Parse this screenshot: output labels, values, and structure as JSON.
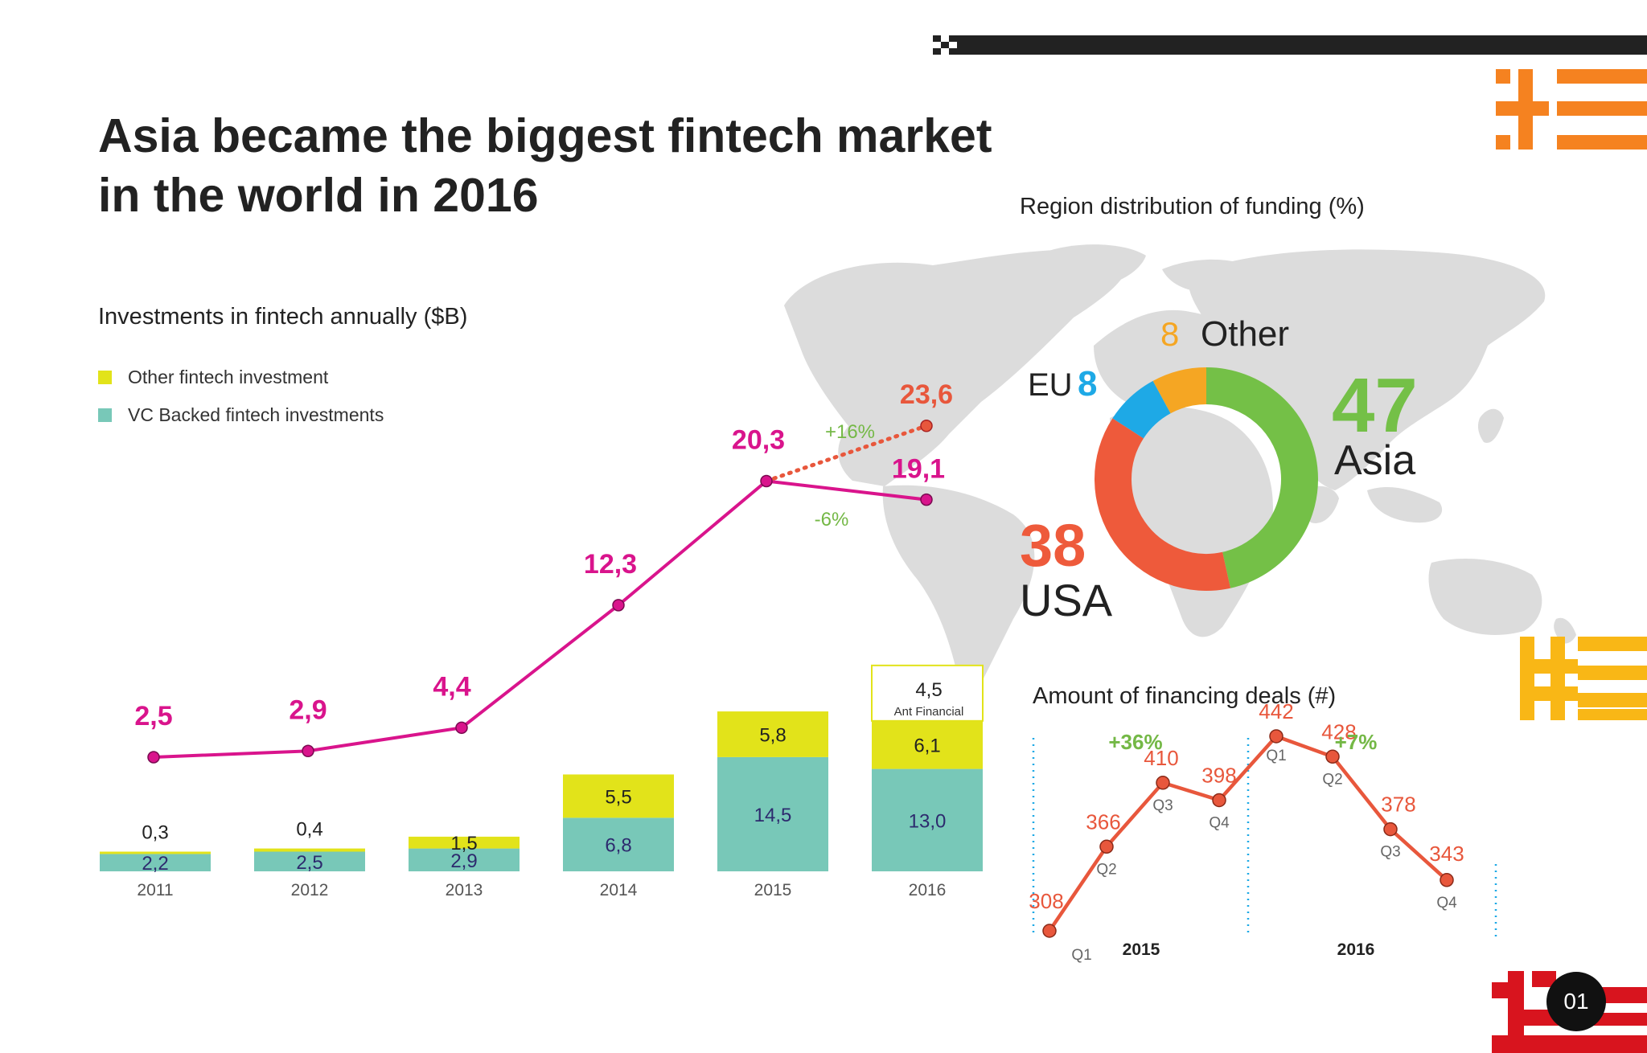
{
  "page": {
    "title_line1": "Asia became the biggest fintech market",
    "title_line2": "in the world in 2016",
    "page_number": "01"
  },
  "colors": {
    "vc": "#78c8b8",
    "other": "#e2e31a",
    "total_line": "#d9148c",
    "projection": "#e8573c",
    "positive": "#74b846",
    "deals_line": "#e8573c",
    "asia": "#74c047",
    "usa": "#ee5a3b",
    "eu": "#1ea9e6",
    "other_region": "#f5a623",
    "map": "#dcdcdc",
    "dark": "#222222",
    "orange_deco": "#f58220",
    "yellow_deco": "#f9b716",
    "red_deco": "#d8141e"
  },
  "chart_data": [
    {
      "type": "bar",
      "title": "Investments in fintech annually ($B)",
      "stacked": true,
      "categories": [
        "2011",
        "2012",
        "2013",
        "2014",
        "2015",
        "2016"
      ],
      "series": [
        {
          "name": "VC Backed fintech investments",
          "values": [
            2.2,
            2.5,
            2.9,
            6.8,
            14.5,
            13.0
          ],
          "labels": [
            "2,2",
            "2,5",
            "2,9",
            "6,8",
            "14,5",
            "13,0"
          ]
        },
        {
          "name": "Other fintech investment",
          "values": [
            0.3,
            0.4,
            1.5,
            5.5,
            5.8,
            6.1
          ],
          "labels": [
            "0,3",
            "0,4",
            "1,5",
            "5,5",
            "5,8",
            "6,1"
          ]
        }
      ],
      "extra_segment": {
        "category": "2016",
        "value": 4.5,
        "label": "4,5",
        "name": "Ant Financial"
      },
      "totals_line": {
        "values": [
          2.5,
          2.9,
          4.4,
          12.3,
          20.3,
          19.1
        ],
        "labels": [
          "2,5",
          "2,9",
          "4,4",
          "12,3",
          "20,3",
          "19,1"
        ]
      },
      "projection": {
        "from_category": "2015",
        "to_category": "2016",
        "value": 23.6,
        "label": "23,6"
      },
      "change_labels": {
        "up": "+16%",
        "down": "-6%"
      }
    },
    {
      "type": "pie",
      "donut": true,
      "title": "Region distribution of funding (%)",
      "slices": [
        {
          "name": "Asia",
          "value": 47,
          "label": "47"
        },
        {
          "name": "USA",
          "value": 38,
          "label": "38"
        },
        {
          "name": "EU",
          "value": 8,
          "label": "8"
        },
        {
          "name": "Other",
          "value": 8,
          "label": "8"
        }
      ]
    },
    {
      "type": "line",
      "title": "Amount of financing deals (#)",
      "x": [
        "Q1",
        "Q2",
        "Q3",
        "Q4",
        "Q1",
        "Q2",
        "Q3",
        "Q4"
      ],
      "years": [
        {
          "label": "2015",
          "growth": "+36%"
        },
        {
          "label": "2016",
          "growth": "+7%"
        }
      ],
      "values": [
        308,
        366,
        410,
        398,
        442,
        428,
        378,
        343
      ]
    }
  ]
}
